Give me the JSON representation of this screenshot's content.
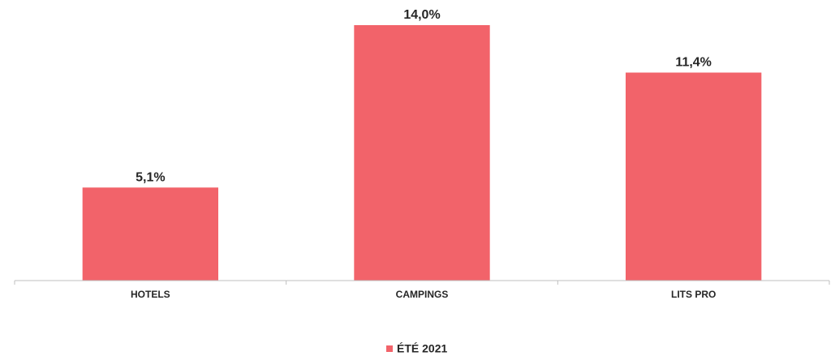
{
  "chart_data": {
    "type": "bar",
    "categories": [
      "HOTELS",
      "CAMPINGS",
      "LITS PRO"
    ],
    "series": [
      {
        "name": "ÉTÉ 2021",
        "color": "#f2636a",
        "values": [
          5.1,
          14.0,
          11.4
        ],
        "value_labels": [
          "5,1%",
          "14,0%",
          "11,4%"
        ]
      }
    ],
    "legend": "bottom"
  }
}
